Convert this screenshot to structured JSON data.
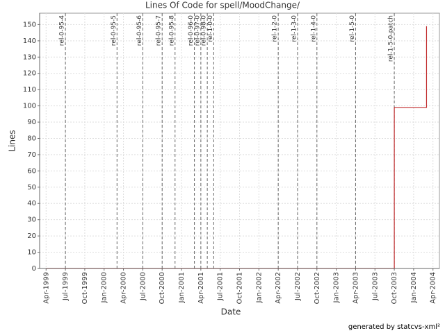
{
  "chart_data": {
    "type": "line",
    "title": "Lines Of Code for spell/MoodChange/",
    "x_label": "Date",
    "y_label": "Lines",
    "footer": "generated by statcvs-xml²",
    "x": [
      "1999-04",
      "2003-10",
      "2003-10",
      "2003-10",
      "2004-03",
      "2004-03"
    ],
    "series": [
      {
        "name": "spell/MoodChange/",
        "color": "#c0282a",
        "values": [
          0,
          0,
          95,
          99,
          99,
          149
        ]
      }
    ],
    "step": true,
    "xlim": [
      "1999-03",
      "2004-05"
    ],
    "xticks": [
      {
        "value": "1999-04",
        "label": "Apr-1999"
      },
      {
        "value": "1999-07",
        "label": "Jul-1999"
      },
      {
        "value": "1999-10",
        "label": "Oct-1999"
      },
      {
        "value": "2000-01",
        "label": "Jan-2000"
      },
      {
        "value": "2000-04",
        "label": "Apr-2000"
      },
      {
        "value": "2000-07",
        "label": "Jul-2000"
      },
      {
        "value": "2000-10",
        "label": "Oct-2000"
      },
      {
        "value": "2001-01",
        "label": "Jan-2001"
      },
      {
        "value": "2001-04",
        "label": "Apr-2001"
      },
      {
        "value": "2001-07",
        "label": "Jul-2001"
      },
      {
        "value": "2001-10",
        "label": "Oct-2001"
      },
      {
        "value": "2002-01",
        "label": "Jan-2002"
      },
      {
        "value": "2002-04",
        "label": "Apr-2002"
      },
      {
        "value": "2002-07",
        "label": "Jul-2002"
      },
      {
        "value": "2002-10",
        "label": "Oct-2002"
      },
      {
        "value": "2003-01",
        "label": "Jan-2003"
      },
      {
        "value": "2003-04",
        "label": "Apr-2003"
      },
      {
        "value": "2003-07",
        "label": "Jul-2003"
      },
      {
        "value": "2003-10",
        "label": "Oct-2003"
      },
      {
        "value": "2004-01",
        "label": "Jan-2004"
      },
      {
        "value": "2004-04",
        "label": "Apr-2004"
      }
    ],
    "ylim": [
      0,
      157
    ],
    "yticks": [
      0,
      10,
      20,
      30,
      40,
      50,
      60,
      70,
      80,
      90,
      100,
      110,
      120,
      130,
      140,
      150
    ],
    "grid": true,
    "markers": [
      {
        "x": "1999-07",
        "label": "rel-0-95-4"
      },
      {
        "x": "2000-03",
        "label": "rel-0-95-5"
      },
      {
        "x": "2000-07",
        "label": "rel-0-95-6"
      },
      {
        "x": "2000-10",
        "label": "rel-0-95-7"
      },
      {
        "x": "2000-12",
        "label": "rel-0-95-8"
      },
      {
        "x": "2001-03",
        "label": "rel-0-96-0"
      },
      {
        "x": "2001-04",
        "label": "rel-0-97-0"
      },
      {
        "x": "2001-05",
        "label": "rel-0-98-0"
      },
      {
        "x": "2001-06",
        "label": "rel-1-0-0"
      },
      {
        "x": "2002-04",
        "label": "rel-1-2-0"
      },
      {
        "x": "2002-07",
        "label": "rel-1-3-0"
      },
      {
        "x": "2002-10",
        "label": "rel-1-4-0"
      },
      {
        "x": "2003-04",
        "label": "rel-1-5-0"
      },
      {
        "x": "2003-10",
        "label": "rel-1-5-0-patch"
      }
    ]
  }
}
